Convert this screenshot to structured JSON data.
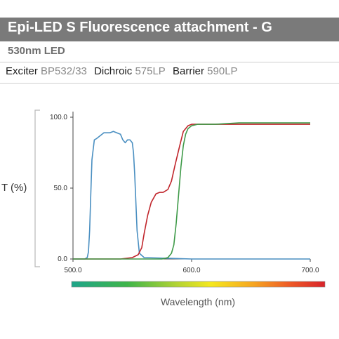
{
  "header": {
    "title": "Epi-LED S Fluorescence attachment - G",
    "subtitle": "530nm LED"
  },
  "filters": [
    {
      "label": "Exciter",
      "value": "BP532/33"
    },
    {
      "label": "Dichroic",
      "value": "575LP"
    },
    {
      "label": "Barrier",
      "value": "590LP"
    }
  ],
  "chart_data": {
    "type": "line",
    "title": "",
    "xlabel": "Wavelength (nm)",
    "ylabel": "T (%)",
    "xlim": [
      500,
      700
    ],
    "ylim": [
      0,
      100
    ],
    "x_ticks": [
      "500.0",
      "600.0",
      "700.0"
    ],
    "y_ticks": [
      "100.0",
      "50.0",
      "0.0"
    ],
    "grid": false,
    "legend": "none",
    "colorbar": {
      "from": 500,
      "to": 700
    },
    "series": [
      {
        "color": "#4a8fc1",
        "x": [
          500,
          510,
          512,
          513,
          514,
          515,
          516,
          518,
          520,
          523,
          526,
          528,
          531,
          534,
          537,
          540,
          542,
          544,
          546,
          548,
          550,
          551,
          552,
          553,
          554,
          556,
          560,
          600,
          700
        ],
        "y": [
          0,
          0,
          1,
          5,
          20,
          45,
          70,
          84,
          85,
          87,
          89,
          89,
          89,
          90,
          89,
          88,
          84,
          82,
          84,
          84,
          82,
          75,
          60,
          40,
          20,
          4,
          1,
          0,
          0
        ]
      },
      {
        "color": "#c0252b",
        "x": [
          500,
          540,
          550,
          555,
          558,
          560,
          563,
          566,
          570,
          573,
          576,
          580,
          583,
          586,
          590,
          593,
          597,
          600,
          610,
          620,
          640,
          660,
          680,
          700
        ],
        "y": [
          0,
          0,
          1,
          3,
          8,
          18,
          31,
          40,
          46,
          47,
          47,
          49,
          55,
          66,
          80,
          90,
          94,
          95,
          95,
          95,
          95,
          95,
          95,
          95
        ]
      },
      {
        "color": "#3e9a48",
        "x": [
          500,
          575,
          580,
          583,
          585,
          587,
          589,
          591,
          593,
          595,
          597,
          600,
          605,
          620,
          640,
          660,
          680,
          700
        ],
        "y": [
          0,
          0,
          1,
          4,
          10,
          25,
          45,
          65,
          80,
          88,
          92,
          94,
          95,
          95,
          96,
          96,
          96,
          96
        ]
      }
    ]
  }
}
